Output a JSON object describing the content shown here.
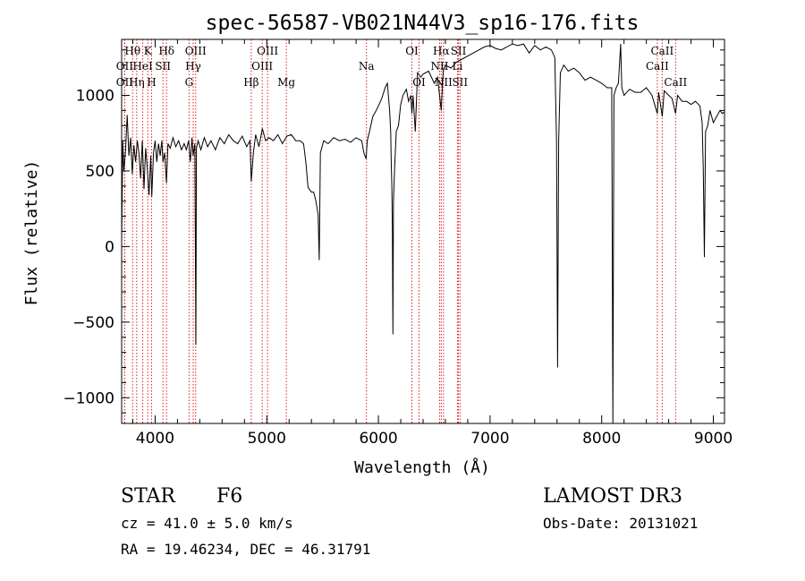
{
  "chart_data": {
    "type": "line",
    "title": "spec-56587-VB021N44V3_sp16-176.fits",
    "xlabel": "Wavelength (Å)",
    "ylabel": "Flux (relative)",
    "xlim": [
      3700,
      9100
    ],
    "ylim": [
      -1170,
      1370
    ],
    "xticks": [
      4000,
      5000,
      6000,
      7000,
      8000,
      9000
    ],
    "xtick_labels": [
      "4000",
      "5000",
      "6000",
      "7000",
      "8000",
      "9000"
    ],
    "yticks": [
      -1000,
      -500,
      0,
      500,
      1000
    ],
    "ytick_labels": [
      "−1000",
      "−500",
      "0",
      "500",
      "1000"
    ],
    "series": [
      {
        "name": "flux",
        "points": [
          [
            3700,
            20
          ],
          [
            3710,
            700
          ],
          [
            3720,
            500
          ],
          [
            3735,
            640
          ],
          [
            3750,
            870
          ],
          [
            3765,
            600
          ],
          [
            3780,
            720
          ],
          [
            3795,
            480
          ],
          [
            3810,
            670
          ],
          [
            3825,
            560
          ],
          [
            3840,
            700
          ],
          [
            3855,
            620
          ],
          [
            3870,
            450
          ],
          [
            3885,
            700
          ],
          [
            3900,
            380
          ],
          [
            3915,
            650
          ],
          [
            3930,
            520
          ],
          [
            3945,
            340
          ],
          [
            3960,
            600
          ],
          [
            3970,
            330
          ],
          [
            3985,
            620
          ],
          [
            4000,
            700
          ],
          [
            4015,
            560
          ],
          [
            4030,
            680
          ],
          [
            4045,
            600
          ],
          [
            4060,
            700
          ],
          [
            4070,
            560
          ],
          [
            4085,
            620
          ],
          [
            4101,
            420
          ],
          [
            4115,
            680
          ],
          [
            4135,
            650
          ],
          [
            4160,
            720
          ],
          [
            4185,
            660
          ],
          [
            4210,
            700
          ],
          [
            4235,
            640
          ],
          [
            4260,
            680
          ],
          [
            4280,
            640
          ],
          [
            4300,
            700
          ],
          [
            4315,
            560
          ],
          [
            4330,
            720
          ],
          [
            4340,
            600
          ],
          [
            4355,
            680
          ],
          [
            4365,
            -650
          ],
          [
            4370,
            650
          ],
          [
            4385,
            700
          ],
          [
            4410,
            640
          ],
          [
            4440,
            720
          ],
          [
            4470,
            660
          ],
          [
            4500,
            700
          ],
          [
            4540,
            640
          ],
          [
            4580,
            720
          ],
          [
            4620,
            680
          ],
          [
            4660,
            740
          ],
          [
            4700,
            700
          ],
          [
            4740,
            680
          ],
          [
            4780,
            730
          ],
          [
            4820,
            660
          ],
          [
            4850,
            700
          ],
          [
            4861,
            430
          ],
          [
            4880,
            620
          ],
          [
            4900,
            740
          ],
          [
            4930,
            660
          ],
          [
            4960,
            780
          ],
          [
            4990,
            700
          ],
          [
            5020,
            720
          ],
          [
            5060,
            700
          ],
          [
            5100,
            740
          ],
          [
            5140,
            680
          ],
          [
            5180,
            730
          ],
          [
            5220,
            740
          ],
          [
            5260,
            700
          ],
          [
            5300,
            700
          ],
          [
            5330,
            680
          ],
          [
            5350,
            560
          ],
          [
            5370,
            390
          ],
          [
            5400,
            360
          ],
          [
            5420,
            360
          ],
          [
            5440,
            300
          ],
          [
            5460,
            210
          ],
          [
            5470,
            -90
          ],
          [
            5480,
            620
          ],
          [
            5510,
            700
          ],
          [
            5550,
            680
          ],
          [
            5600,
            720
          ],
          [
            5650,
            700
          ],
          [
            5700,
            710
          ],
          [
            5750,
            690
          ],
          [
            5800,
            720
          ],
          [
            5850,
            700
          ],
          [
            5870,
            620
          ],
          [
            5890,
            580
          ],
          [
            5900,
            700
          ],
          [
            5920,
            760
          ],
          [
            5950,
            860
          ],
          [
            5980,
            900
          ],
          [
            6000,
            930
          ],
          [
            6030,
            980
          ],
          [
            6060,
            1050
          ],
          [
            6080,
            1080
          ],
          [
            6100,
            900
          ],
          [
            6110,
            760
          ],
          [
            6115,
            560
          ],
          [
            6120,
            400
          ],
          [
            6125,
            100
          ],
          [
            6130,
            -580
          ],
          [
            6135,
            300
          ],
          [
            6145,
            520
          ],
          [
            6160,
            760
          ],
          [
            6180,
            800
          ],
          [
            6200,
            940
          ],
          [
            6220,
            1000
          ],
          [
            6250,
            1040
          ],
          [
            6270,
            960
          ],
          [
            6290,
            1000
          ],
          [
            6300,
            880
          ],
          [
            6310,
            1000
          ],
          [
            6330,
            760
          ],
          [
            6350,
            1150
          ],
          [
            6380,
            1120
          ],
          [
            6400,
            1140
          ],
          [
            6450,
            1160
          ],
          [
            6500,
            1080
          ],
          [
            6530,
            1120
          ],
          [
            6563,
            900
          ],
          [
            6580,
            1160
          ],
          [
            6600,
            1200
          ],
          [
            6650,
            1180
          ],
          [
            6700,
            1220
          ],
          [
            6750,
            1240
          ],
          [
            6800,
            1260
          ],
          [
            6850,
            1280
          ],
          [
            6900,
            1300
          ],
          [
            6950,
            1320
          ],
          [
            7000,
            1330
          ],
          [
            7050,
            1310
          ],
          [
            7100,
            1300
          ],
          [
            7150,
            1320
          ],
          [
            7200,
            1340
          ],
          [
            7250,
            1330
          ],
          [
            7300,
            1340
          ],
          [
            7350,
            1280
          ],
          [
            7400,
            1330
          ],
          [
            7450,
            1300
          ],
          [
            7500,
            1320
          ],
          [
            7550,
            1300
          ],
          [
            7580,
            1250
          ],
          [
            7595,
            700
          ],
          [
            7605,
            -800
          ],
          [
            7615,
            700
          ],
          [
            7630,
            1150
          ],
          [
            7660,
            1200
          ],
          [
            7700,
            1160
          ],
          [
            7750,
            1180
          ],
          [
            7800,
            1150
          ],
          [
            7850,
            1100
          ],
          [
            7900,
            1120
          ],
          [
            7950,
            1100
          ],
          [
            8000,
            1080
          ],
          [
            8050,
            1050
          ],
          [
            8090,
            1050
          ],
          [
            8100,
            -1170
          ],
          [
            8110,
            1000
          ],
          [
            8130,
            1050
          ],
          [
            8150,
            1080
          ],
          [
            8170,
            1340
          ],
          [
            8180,
            1050
          ],
          [
            8200,
            1000
          ],
          [
            8250,
            1040
          ],
          [
            8300,
            1020
          ],
          [
            8350,
            1020
          ],
          [
            8400,
            1050
          ],
          [
            8450,
            1000
          ],
          [
            8498,
            880
          ],
          [
            8510,
            1020
          ],
          [
            8542,
            860
          ],
          [
            8560,
            1030
          ],
          [
            8600,
            1000
          ],
          [
            8630,
            980
          ],
          [
            8662,
            880
          ],
          [
            8680,
            1000
          ],
          [
            8720,
            960
          ],
          [
            8760,
            960
          ],
          [
            8800,
            940
          ],
          [
            8840,
            960
          ],
          [
            8880,
            930
          ],
          [
            8900,
            820
          ],
          [
            8910,
            500
          ],
          [
            8920,
            -70
          ],
          [
            8930,
            760
          ],
          [
            8950,
            800
          ],
          [
            8970,
            900
          ],
          [
            9000,
            820
          ],
          [
            9030,
            860
          ],
          [
            9060,
            900
          ],
          [
            9080,
            880
          ],
          [
            9100,
            890
          ]
        ]
      }
    ],
    "line_markers": [
      {
        "label": "OII",
        "wavelength": 3727,
        "row": 2
      },
      {
        "label": "OII",
        "wavelength": 3727,
        "row": 3
      },
      {
        "label": "Hθ",
        "wavelength": 3798,
        "row": 1
      },
      {
        "label": "Hη",
        "wavelength": 3835,
        "row": 3
      },
      {
        "label": "HeI",
        "wavelength": 3889,
        "row": 2
      },
      {
        "label": "K",
        "wavelength": 3934,
        "row": 1
      },
      {
        "label": "H",
        "wavelength": 3968,
        "row": 3
      },
      {
        "label": "SII",
        "wavelength": 4070,
        "row": 2
      },
      {
        "label": "Hδ",
        "wavelength": 4102,
        "row": 1
      },
      {
        "label": "OIII",
        "wavelength": 4363,
        "row": 1
      },
      {
        "label": "Hγ",
        "wavelength": 4341,
        "row": 2
      },
      {
        "label": "G",
        "wavelength": 4304,
        "row": 3
      },
      {
        "label": "Hβ",
        "wavelength": 4861,
        "row": 3
      },
      {
        "label": "OIII",
        "wavelength": 4959,
        "row": 2
      },
      {
        "label": "OIII",
        "wavelength": 5007,
        "row": 1
      },
      {
        "label": "Mg",
        "wavelength": 5175,
        "row": 3
      },
      {
        "label": "Na",
        "wavelength": 5893,
        "row": 2
      },
      {
        "label": "OI",
        "wavelength": 6300,
        "row": 1
      },
      {
        "label": "OI",
        "wavelength": 6364,
        "row": 3
      },
      {
        "label": "Hα",
        "wavelength": 6563,
        "row": 1
      },
      {
        "label": "NII",
        "wavelength": 6548,
        "row": 2
      },
      {
        "label": "NII",
        "wavelength": 6583,
        "row": 3
      },
      {
        "label": "Li",
        "wavelength": 6708,
        "row": 2
      },
      {
        "label": "SII",
        "wavelength": 6717,
        "row": 1
      },
      {
        "label": "SII",
        "wavelength": 6731,
        "row": 3
      },
      {
        "label": "CaII",
        "wavelength": 8498,
        "row": 2
      },
      {
        "label": "CaII",
        "wavelength": 8542,
        "row": 1
      },
      {
        "label": "CaII",
        "wavelength": 8662,
        "row": 3
      }
    ]
  },
  "info": {
    "object_class": "STAR",
    "subclass": "F6",
    "survey": "LAMOST DR3",
    "redshift_line": "cz = 41.0 ± 5.0 km/s",
    "obs_date_line": "Obs-Date: 20131021",
    "coords_line": "RA =  19.46234, DEC =  46.31791"
  }
}
